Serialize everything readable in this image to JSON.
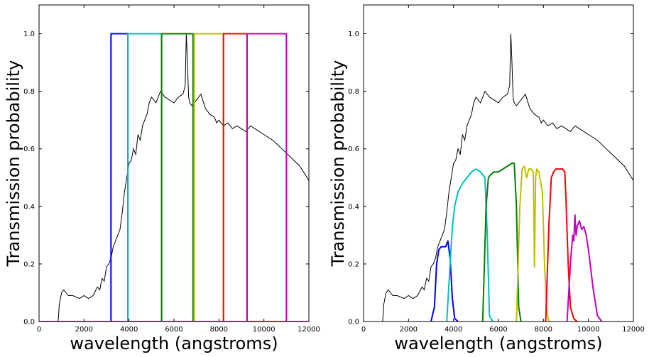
{
  "chart_data": [
    {
      "type": "line",
      "panel": "left",
      "title": "",
      "xlabel": "wavelength (angstroms)",
      "ylabel": "Transmission probability",
      "xlim": [
        0,
        12000
      ],
      "ylim": [
        0,
        1.1
      ],
      "xticks": [
        "0",
        "2000",
        "4000",
        "6000",
        "8000",
        "10000",
        "12000"
      ],
      "yticks": [
        "0.0",
        "0.2",
        "0.4",
        "0.6",
        "0.8",
        "1.0"
      ],
      "grid": false,
      "legend": "none",
      "spectrum_color": "#000000",
      "spectrum": {
        "x": [
          0,
          850,
          900,
          1000,
          1100,
          1200,
          1300,
          1500,
          1800,
          2000,
          2200,
          2400,
          2600,
          2700,
          2800,
          2900,
          3000,
          3100,
          3200,
          3300,
          3400,
          3500,
          3600,
          3700,
          3800,
          3900,
          4000,
          4100,
          4200,
          4300,
          4400,
          4500,
          4600,
          4700,
          4800,
          4900,
          5000,
          5200,
          5400,
          5600,
          5800,
          6000,
          6200,
          6400,
          6500,
          6550,
          6600,
          6650,
          6700,
          6800,
          7000,
          7200,
          7400,
          7600,
          7800,
          7900,
          8000,
          8200,
          8400,
          8600,
          8800,
          9000,
          9200,
          9400,
          9600,
          9800,
          10000,
          10400,
          10800,
          11200,
          11600,
          12000
        ],
        "y": [
          0.0,
          0.0,
          0.06,
          0.1,
          0.11,
          0.1,
          0.09,
          0.09,
          0.08,
          0.09,
          0.08,
          0.09,
          0.12,
          0.11,
          0.15,
          0.14,
          0.19,
          0.2,
          0.22,
          0.26,
          0.28,
          0.3,
          0.32,
          0.38,
          0.45,
          0.5,
          0.55,
          0.56,
          0.6,
          0.58,
          0.65,
          0.63,
          0.68,
          0.7,
          0.72,
          0.76,
          0.78,
          0.76,
          0.8,
          0.78,
          0.77,
          0.76,
          0.78,
          0.79,
          0.82,
          1.0,
          0.9,
          0.78,
          0.76,
          0.75,
          0.77,
          0.79,
          0.74,
          0.72,
          0.71,
          0.69,
          0.7,
          0.68,
          0.69,
          0.67,
          0.68,
          0.67,
          0.66,
          0.68,
          0.67,
          0.66,
          0.65,
          0.63,
          0.6,
          0.57,
          0.54,
          0.49
        ]
      },
      "series": [
        {
          "color": "#0000ff",
          "x": [
            0,
            3200,
            3200,
            3950,
            3950,
            12000
          ],
          "y": [
            0,
            0,
            1,
            1,
            0,
            0
          ]
        },
        {
          "color": "#00bfbf",
          "x": [
            0,
            3950,
            3950,
            5450,
            5450,
            12000
          ],
          "y": [
            0,
            0,
            1,
            1,
            0,
            0
          ]
        },
        {
          "color": "#008000",
          "x": [
            0,
            5450,
            5450,
            6850,
            6850,
            12000
          ],
          "y": [
            0,
            0,
            1,
            1,
            0,
            0
          ]
        },
        {
          "color": "#bfbf00",
          "x": [
            0,
            6900,
            6900,
            8200,
            8200,
            12000
          ],
          "y": [
            0,
            0,
            1,
            1,
            0,
            0
          ]
        },
        {
          "color": "#ff0000",
          "x": [
            0,
            8200,
            8200,
            9250,
            9250,
            12000
          ],
          "y": [
            0,
            0,
            1,
            1,
            0,
            0
          ]
        },
        {
          "color": "#bf00bf",
          "x": [
            0,
            9250,
            9250,
            11000,
            11000,
            12000
          ],
          "y": [
            0,
            0,
            1,
            1,
            0,
            0
          ]
        }
      ]
    },
    {
      "type": "line",
      "panel": "right",
      "title": "",
      "xlabel": "wavelength (angstroms)",
      "ylabel": "Transmission probability",
      "xlim": [
        0,
        12000
      ],
      "ylim": [
        0,
        1.1
      ],
      "xticks": [
        "0",
        "2000",
        "4000",
        "6000",
        "8000",
        "10000",
        "12000"
      ],
      "yticks": [
        "0.0",
        "0.2",
        "0.4",
        "0.6",
        "0.8",
        "1.0"
      ],
      "grid": false,
      "legend": "none",
      "spectrum_color": "#000000",
      "spectrum": {
        "x": [
          0,
          850,
          900,
          1000,
          1100,
          1200,
          1300,
          1500,
          1800,
          2000,
          2200,
          2400,
          2600,
          2700,
          2800,
          2900,
          3000,
          3100,
          3200,
          3300,
          3400,
          3500,
          3600,
          3700,
          3800,
          3900,
          4000,
          4100,
          4200,
          4300,
          4400,
          4500,
          4600,
          4700,
          4800,
          4900,
          5000,
          5200,
          5400,
          5600,
          5800,
          6000,
          6200,
          6400,
          6500,
          6550,
          6600,
          6650,
          6700,
          6800,
          7000,
          7200,
          7400,
          7600,
          7800,
          7900,
          8000,
          8200,
          8400,
          8600,
          8800,
          9000,
          9200,
          9400,
          9600,
          9800,
          10000,
          10400,
          10800,
          11200,
          11600,
          12000
        ],
        "y": [
          0.0,
          0.0,
          0.06,
          0.1,
          0.11,
          0.1,
          0.09,
          0.09,
          0.08,
          0.09,
          0.08,
          0.09,
          0.12,
          0.11,
          0.15,
          0.14,
          0.19,
          0.2,
          0.22,
          0.26,
          0.28,
          0.3,
          0.32,
          0.38,
          0.45,
          0.5,
          0.55,
          0.56,
          0.6,
          0.58,
          0.65,
          0.63,
          0.68,
          0.7,
          0.72,
          0.76,
          0.78,
          0.76,
          0.8,
          0.78,
          0.77,
          0.76,
          0.78,
          0.79,
          0.82,
          1.0,
          0.9,
          0.78,
          0.76,
          0.75,
          0.77,
          0.79,
          0.74,
          0.72,
          0.71,
          0.69,
          0.7,
          0.68,
          0.69,
          0.67,
          0.68,
          0.67,
          0.66,
          0.68,
          0.67,
          0.66,
          0.65,
          0.63,
          0.6,
          0.57,
          0.54,
          0.49
        ]
      },
      "series": [
        {
          "color": "#0000ff",
          "x": [
            3000,
            3150,
            3250,
            3350,
            3450,
            3550,
            3650,
            3750,
            3850,
            3950,
            4050,
            4200
          ],
          "y": [
            0,
            0.05,
            0.2,
            0.25,
            0.26,
            0.26,
            0.26,
            0.28,
            0.22,
            0.08,
            0.01,
            0
          ]
        },
        {
          "color": "#00bfbf",
          "x": [
            3700,
            3850,
            3950,
            4050,
            4200,
            4400,
            4600,
            4800,
            5000,
            5200,
            5400,
            5500,
            5600,
            5750
          ],
          "y": [
            0,
            0.2,
            0.33,
            0.4,
            0.45,
            0.48,
            0.5,
            0.52,
            0.53,
            0.52,
            0.5,
            0.3,
            0.02,
            0
          ]
        },
        {
          "color": "#008000",
          "x": [
            5300,
            5450,
            5550,
            5650,
            5800,
            6000,
            6200,
            6400,
            6600,
            6700,
            6800,
            6900,
            7000
          ],
          "y": [
            0,
            0.4,
            0.5,
            0.51,
            0.52,
            0.52,
            0.53,
            0.54,
            0.55,
            0.55,
            0.4,
            0.05,
            0
          ]
        },
        {
          "color": "#bfbf00",
          "x": [
            6800,
            6950,
            7050,
            7150,
            7250,
            7350,
            7450,
            7550,
            7600,
            7650,
            7700,
            7800,
            7950,
            8050,
            8150,
            8250
          ],
          "y": [
            0,
            0.4,
            0.53,
            0.54,
            0.5,
            0.53,
            0.53,
            0.52,
            0.19,
            0.5,
            0.53,
            0.52,
            0.45,
            0.2,
            0.03,
            0
          ]
        },
        {
          "color": "#ff0000",
          "x": [
            8100,
            8250,
            8350,
            8450,
            8550,
            8700,
            8850,
            8950,
            9000,
            9100,
            9200,
            9350,
            9500
          ],
          "y": [
            0,
            0.35,
            0.5,
            0.52,
            0.53,
            0.53,
            0.53,
            0.52,
            0.43,
            0.2,
            0.05,
            0.01,
            0
          ]
        },
        {
          "color": "#bf00bf",
          "x": [
            9050,
            9200,
            9300,
            9350,
            9400,
            9450,
            9500,
            9600,
            9700,
            9800,
            9900,
            10000,
            10200,
            10400,
            10600
          ],
          "y": [
            0,
            0.2,
            0.3,
            0.28,
            0.37,
            0.3,
            0.33,
            0.35,
            0.32,
            0.33,
            0.3,
            0.25,
            0.12,
            0.02,
            0
          ]
        }
      ]
    }
  ]
}
